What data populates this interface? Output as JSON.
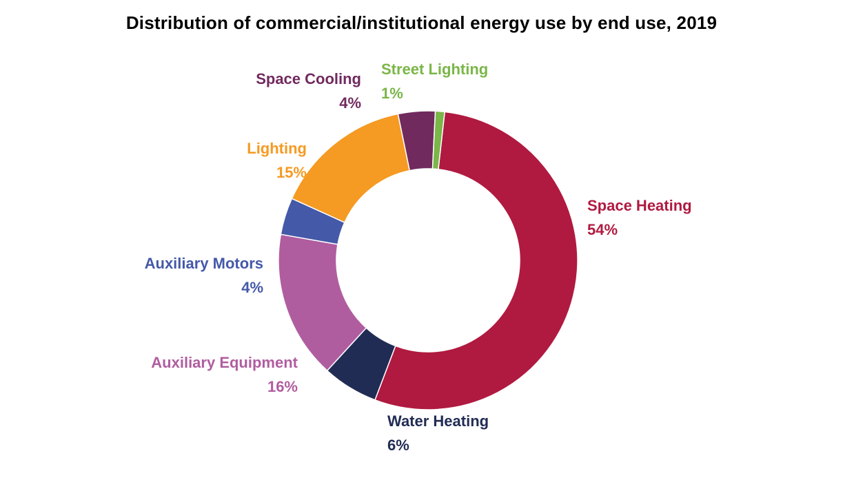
{
  "chart_data": {
    "type": "pie",
    "variant": "donut",
    "title": "Distribution of commercial/institutional energy use by end use, 2019",
    "categories": [
      "Space Heating",
      "Water Heating",
      "Auxiliary Equipment",
      "Auxiliary Motors",
      "Lighting",
      "Space Cooling",
      "Street Lighting"
    ],
    "values": [
      54,
      6,
      16,
      4,
      15,
      4,
      1
    ],
    "value_labels": [
      "54%",
      "6%",
      "16%",
      "4%",
      "15%",
      "4%",
      "1%"
    ],
    "colors": [
      "#B01A40",
      "#212C55",
      "#B05DA0",
      "#4459A8",
      "#F59A22",
      "#712A5E",
      "#7AB648"
    ],
    "legend": "none",
    "data_labels": "outside"
  }
}
